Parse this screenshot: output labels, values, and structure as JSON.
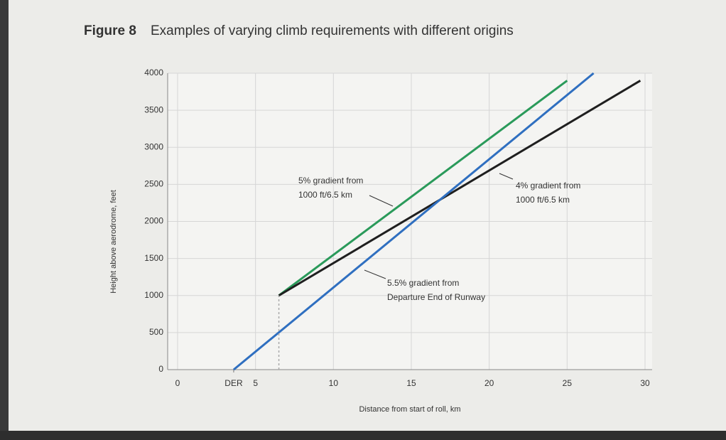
{
  "chart_data": {
    "type": "line",
    "title_label": "Figure 8",
    "title": "Examples of varying climb requirements with different origins",
    "x_label": "Distance from start of roll, km",
    "y_label": "Height above aerodrome, feet",
    "xlim": [
      0,
      30
    ],
    "ylim": [
      0,
      4000
    ],
    "xticks": [
      0,
      {
        "value": 3.6,
        "label": "DER"
      },
      5,
      10,
      15,
      20,
      25,
      30
    ],
    "yticks": [
      0,
      500,
      1000,
      1500,
      2000,
      2500,
      3000,
      3500,
      4000
    ],
    "grid": true,
    "series": [
      {
        "color": "#2a9a5a",
        "x": [
          6.5,
          25
        ],
        "values": [
          1000,
          3900
        ]
      },
      {
        "color": "#1f1f1f",
        "x": [
          6.5,
          29.7
        ],
        "values": [
          1000,
          3900
        ]
      },
      {
        "color": "#2f6fc0",
        "x": [
          3.6,
          26.7
        ],
        "values": [
          0,
          4000
        ]
      },
      {
        "color": "#aaaaaa",
        "dash": "3,3",
        "x": [
          6.5,
          6.5
        ],
        "values": [
          0,
          1000
        ]
      }
    ],
    "annotations": [
      {
        "lines": [
          "5% gradient from",
          "1000 ft/6.5 km"
        ],
        "color": "#2a9a5a"
      },
      {
        "lines": [
          "4% gradient from",
          "1000 ft/6.5 km"
        ],
        "color": "#1f1f1f"
      },
      {
        "lines": [
          "5.5% gradient from",
          "Departure End of Runway"
        ],
        "color": "#2f6fc0"
      }
    ]
  }
}
